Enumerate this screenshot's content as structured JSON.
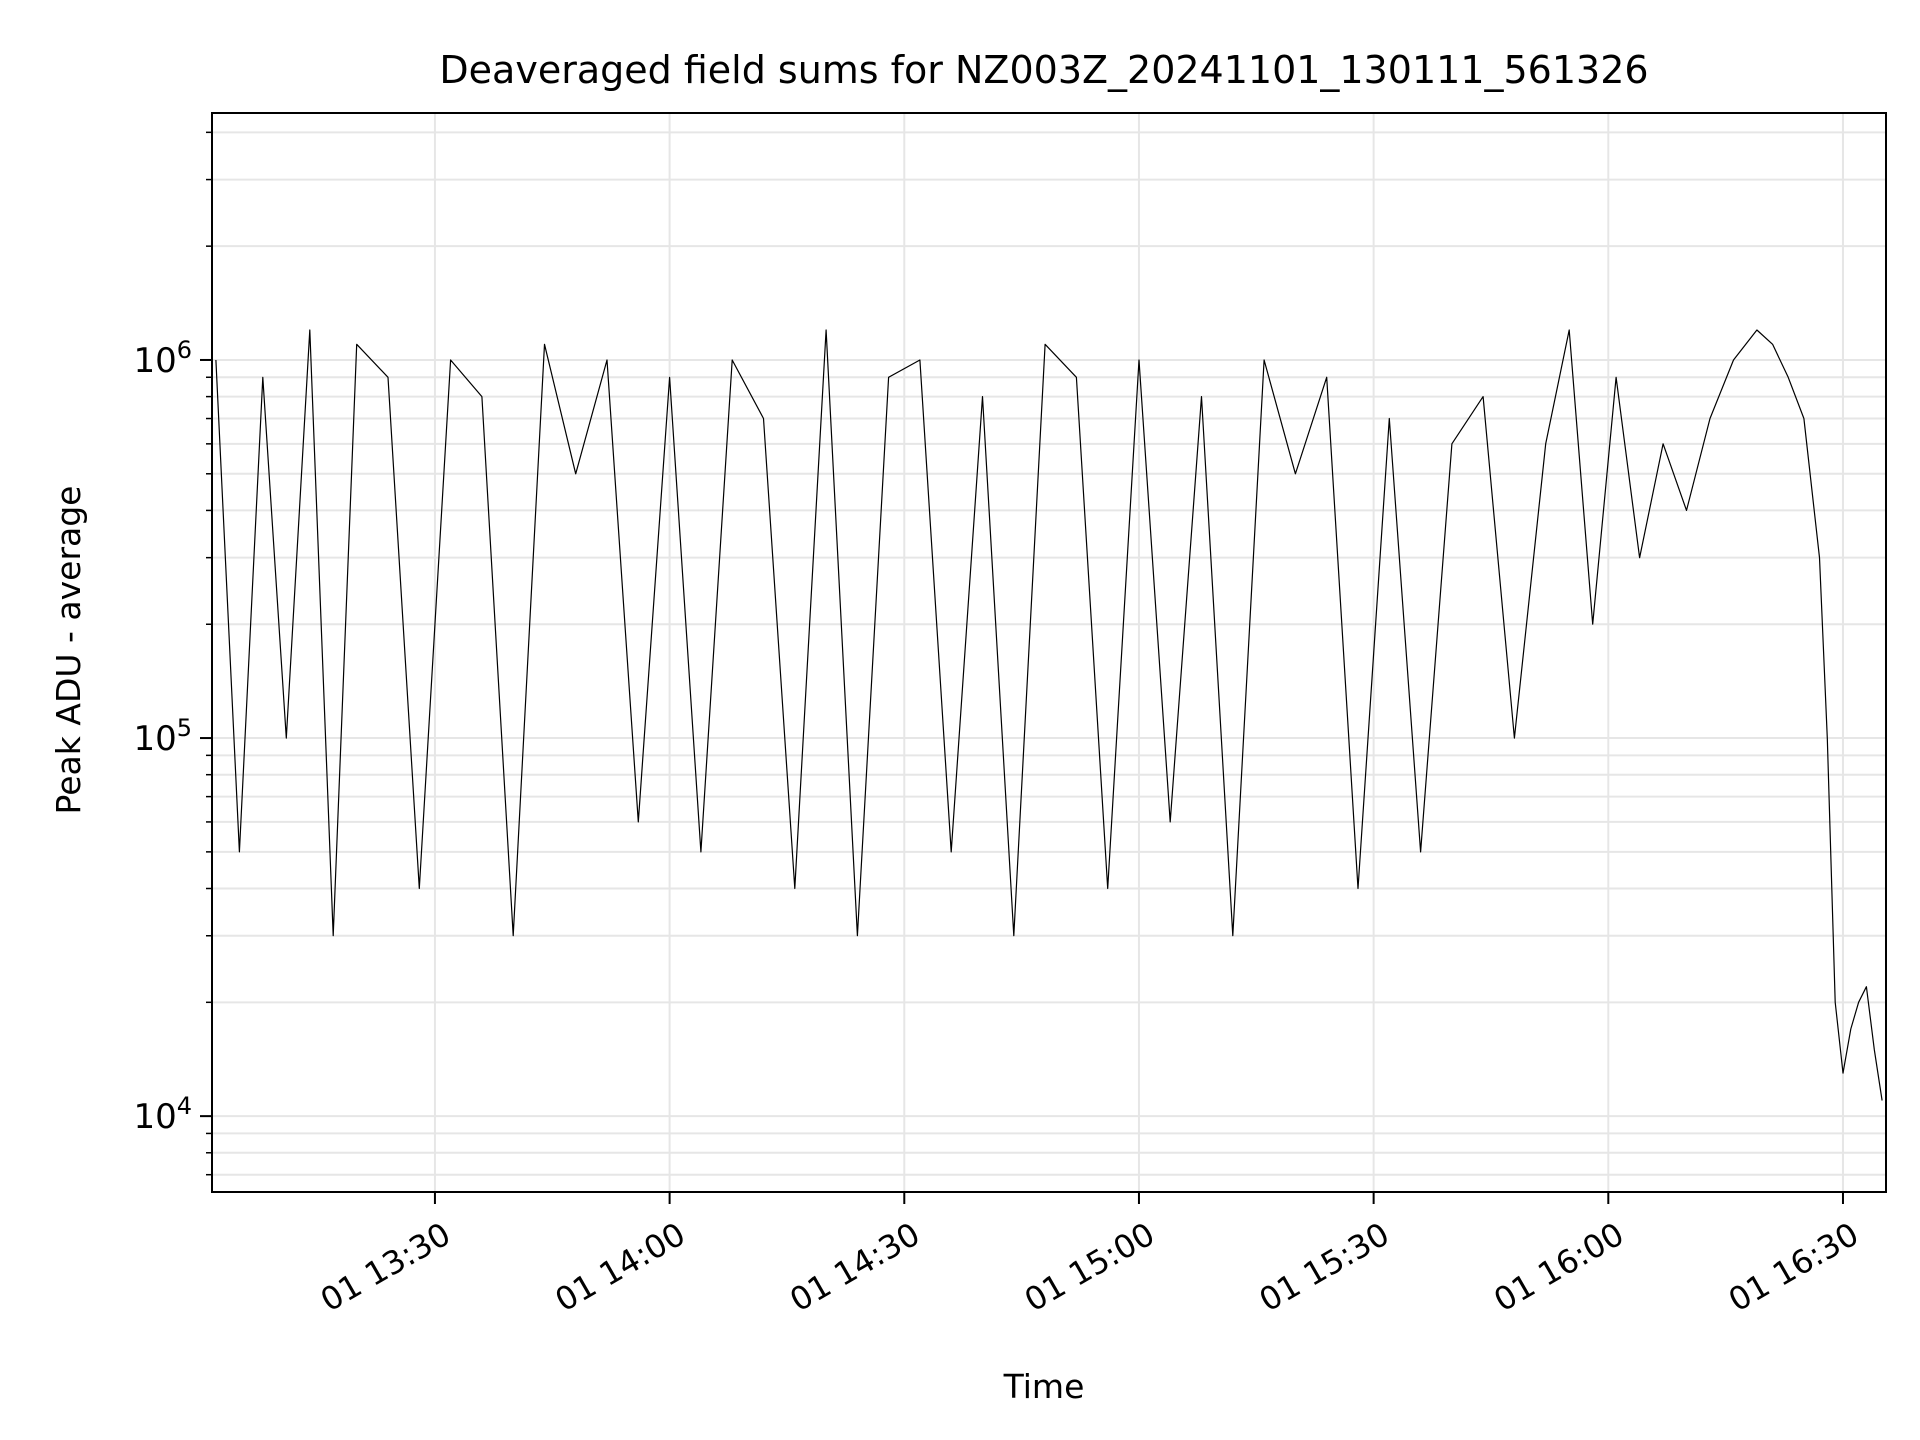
{
  "chart_data": {
    "type": "line",
    "title": "Deaveraged field sums for NZ003Z_20241101_130111_561326",
    "xlabel": "Time",
    "ylabel": "Peak ADU - average",
    "x_scale": "time",
    "y_scale": "log",
    "x_range": [
      "2024-11-01 13:01:30",
      "2024-11-01 16:35:30"
    ],
    "ylim": [
      6300,
      4500000
    ],
    "grid": true,
    "line_color": "#000000",
    "x_ticks": [
      {
        "time": "2024-11-01 13:30",
        "label": "01 13:30"
      },
      {
        "time": "2024-11-01 14:00",
        "label": "01 14:00"
      },
      {
        "time": "2024-11-01 14:30",
        "label": "01 14:30"
      },
      {
        "time": "2024-11-01 15:00",
        "label": "01 15:00"
      },
      {
        "time": "2024-11-01 15:30",
        "label": "01 15:30"
      },
      {
        "time": "2024-11-01 16:00",
        "label": "01 16:00"
      },
      {
        "time": "2024-11-01 16:30",
        "label": "01 16:30"
      }
    ],
    "y_ticks": [
      {
        "value": 10000,
        "base": "10",
        "exp": "4"
      },
      {
        "value": 100000,
        "base": "10",
        "exp": "5"
      },
      {
        "value": 1000000,
        "base": "10",
        "exp": "6"
      }
    ],
    "series": [
      {
        "x": [
          "2024-11-01 13:02",
          "2024-11-01 13:05",
          "2024-11-01 13:08",
          "2024-11-01 13:11",
          "2024-11-01 13:14",
          "2024-11-01 13:17",
          "2024-11-01 13:20",
          "2024-11-01 13:24",
          "2024-11-01 13:28",
          "2024-11-01 13:32",
          "2024-11-01 13:36",
          "2024-11-01 13:40",
          "2024-11-01 13:44",
          "2024-11-01 13:48",
          "2024-11-01 13:52",
          "2024-11-01 13:56",
          "2024-11-01 14:00",
          "2024-11-01 14:04",
          "2024-11-01 14:08",
          "2024-11-01 14:12",
          "2024-11-01 14:16",
          "2024-11-01 14:20",
          "2024-11-01 14:24",
          "2024-11-01 14:28",
          "2024-11-01 14:32",
          "2024-11-01 14:36",
          "2024-11-01 14:40",
          "2024-11-01 14:44",
          "2024-11-01 14:48",
          "2024-11-01 14:52",
          "2024-11-01 14:56",
          "2024-11-01 15:00",
          "2024-11-01 15:04",
          "2024-11-01 15:08",
          "2024-11-01 15:12",
          "2024-11-01 15:16",
          "2024-11-01 15:20",
          "2024-11-01 15:24",
          "2024-11-01 15:28",
          "2024-11-01 15:32",
          "2024-11-01 15:36",
          "2024-11-01 15:40",
          "2024-11-01 15:44",
          "2024-11-01 15:48",
          "2024-11-01 15:52",
          "2024-11-01 15:55",
          "2024-11-01 15:58",
          "2024-11-01 16:01",
          "2024-11-01 16:04",
          "2024-11-01 16:07",
          "2024-11-01 16:10",
          "2024-11-01 16:13",
          "2024-11-01 16:16",
          "2024-11-01 16:19",
          "2024-11-01 16:21",
          "2024-11-01 16:23",
          "2024-11-01 16:25",
          "2024-11-01 16:27",
          "2024-11-01 16:28",
          "2024-11-01 16:29",
          "2024-11-01 16:30",
          "2024-11-01 16:31",
          "2024-11-01 16:32",
          "2024-11-01 16:33",
          "2024-11-01 16:34",
          "2024-11-01 16:35"
        ],
        "y": [
          1000000,
          50000,
          900000,
          100000,
          1200000,
          30000,
          1100000,
          900000,
          40000,
          1000000,
          800000,
          30000,
          1100000,
          500000,
          1000000,
          60000,
          900000,
          50000,
          1000000,
          700000,
          40000,
          1200000,
          30000,
          900000,
          1000000,
          50000,
          800000,
          30000,
          1100000,
          900000,
          40000,
          1000000,
          60000,
          800000,
          30000,
          1000000,
          500000,
          900000,
          40000,
          700000,
          50000,
          600000,
          800000,
          100000,
          600000,
          1200000,
          200000,
          900000,
          300000,
          600000,
          400000,
          700000,
          1000000,
          1200000,
          1100000,
          900000,
          700000,
          300000,
          100000,
          20000,
          13000,
          17000,
          20000,
          22000,
          15000,
          11000
        ]
      }
    ]
  }
}
